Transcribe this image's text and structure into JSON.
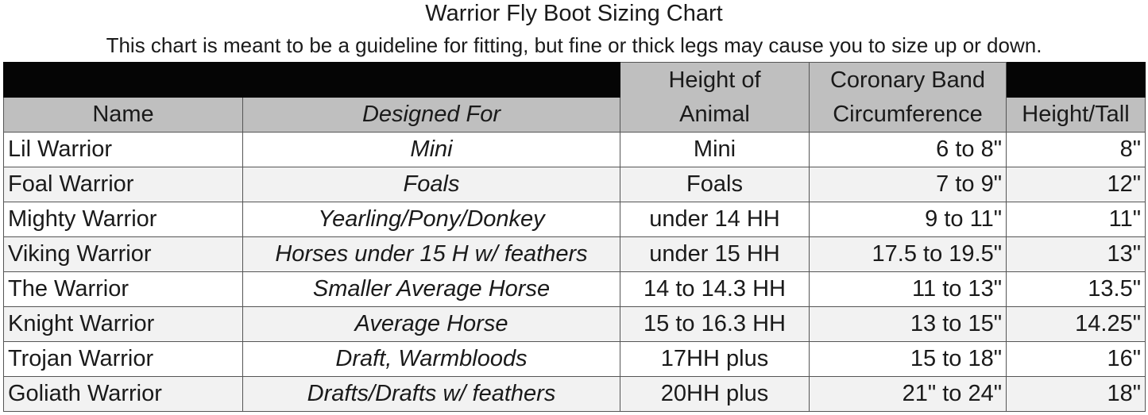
{
  "title": "Warrior Fly Boot Sizing Chart",
  "subtitle": "This chart is meant to be a guideline for fitting, but fine or thick legs may cause you to size up or down.",
  "colors": {
    "header_black": "#050505",
    "header_gray": "#bfbfbf",
    "row_alt": "#f2f2f2"
  },
  "headers": {
    "name": "Name",
    "designed_for": "Designed For",
    "height_line1": "Height of",
    "height_line2": "Animal",
    "coronary_line1": "Coronary Band",
    "coronary_line2": "Circumference",
    "height_tall": "Height/Tall"
  },
  "rows": [
    {
      "name": "Lil Warrior",
      "designed_for": "Mini",
      "height": "Mini",
      "coronary": "6 to 8\"",
      "tall": "8\""
    },
    {
      "name": "Foal Warrior",
      "designed_for": "Foals",
      "height": "Foals",
      "coronary": "7 to 9\"",
      "tall": "12\""
    },
    {
      "name": "Mighty Warrior",
      "designed_for": "Yearling/Pony/Donkey",
      "height": "under 14 HH",
      "coronary": "9 to 11\"",
      "tall": "11\""
    },
    {
      "name": "Viking Warrior",
      "designed_for": "Horses under 15 H w/ feathers",
      "height": "under 15 HH",
      "coronary": "17.5 to  19.5\"",
      "tall": "13\""
    },
    {
      "name": "The Warrior",
      "designed_for": "Smaller Average Horse",
      "height": "14 to 14.3 HH",
      "coronary": "11 to 13\"",
      "tall": "13.5\""
    },
    {
      "name": "Knight Warrior",
      "designed_for": "Average Horse",
      "height": "15 to 16.3 HH",
      "coronary": "13 to 15\"",
      "tall": "14.25\""
    },
    {
      "name": "Trojan Warrior",
      "designed_for": "Draft, Warmbloods",
      "height": "17HH plus",
      "coronary": "15 to 18\"",
      "tall": "16\""
    },
    {
      "name": "Goliath Warrior",
      "designed_for": "Drafts/Drafts w/ feathers",
      "height": "20HH plus",
      "coronary": "21\" to 24\"",
      "tall": "18\""
    }
  ]
}
